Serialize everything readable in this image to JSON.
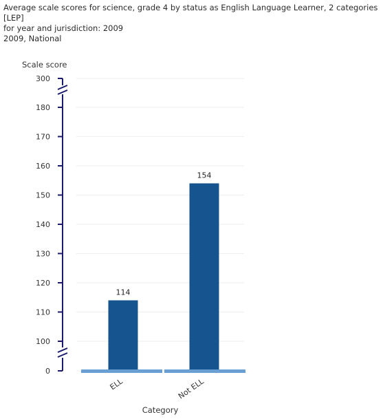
{
  "header": {
    "title_line1": "Average scale scores for science, grade 4 by status as English Language Learner, 2 categories [LEP]",
    "title_line2": "for year and jurisdiction: 2009",
    "subtitle": "2009, National"
  },
  "chart_data": {
    "type": "bar",
    "categories": [
      "ELL",
      "Not ELL"
    ],
    "values": [
      114,
      154
    ],
    "xlabel": "Category",
    "ylabel": "Scale score",
    "ylim": [
      100,
      180
    ],
    "axis_break": true,
    "yticks": [
      "0",
      "100",
      "110",
      "120",
      "130",
      "140",
      "150",
      "160",
      "170",
      "180",
      "300"
    ],
    "grid": true,
    "bar_color": "#15548e",
    "axis_color": "#1a1a6e",
    "baseline_color": "#6a9fd4"
  }
}
